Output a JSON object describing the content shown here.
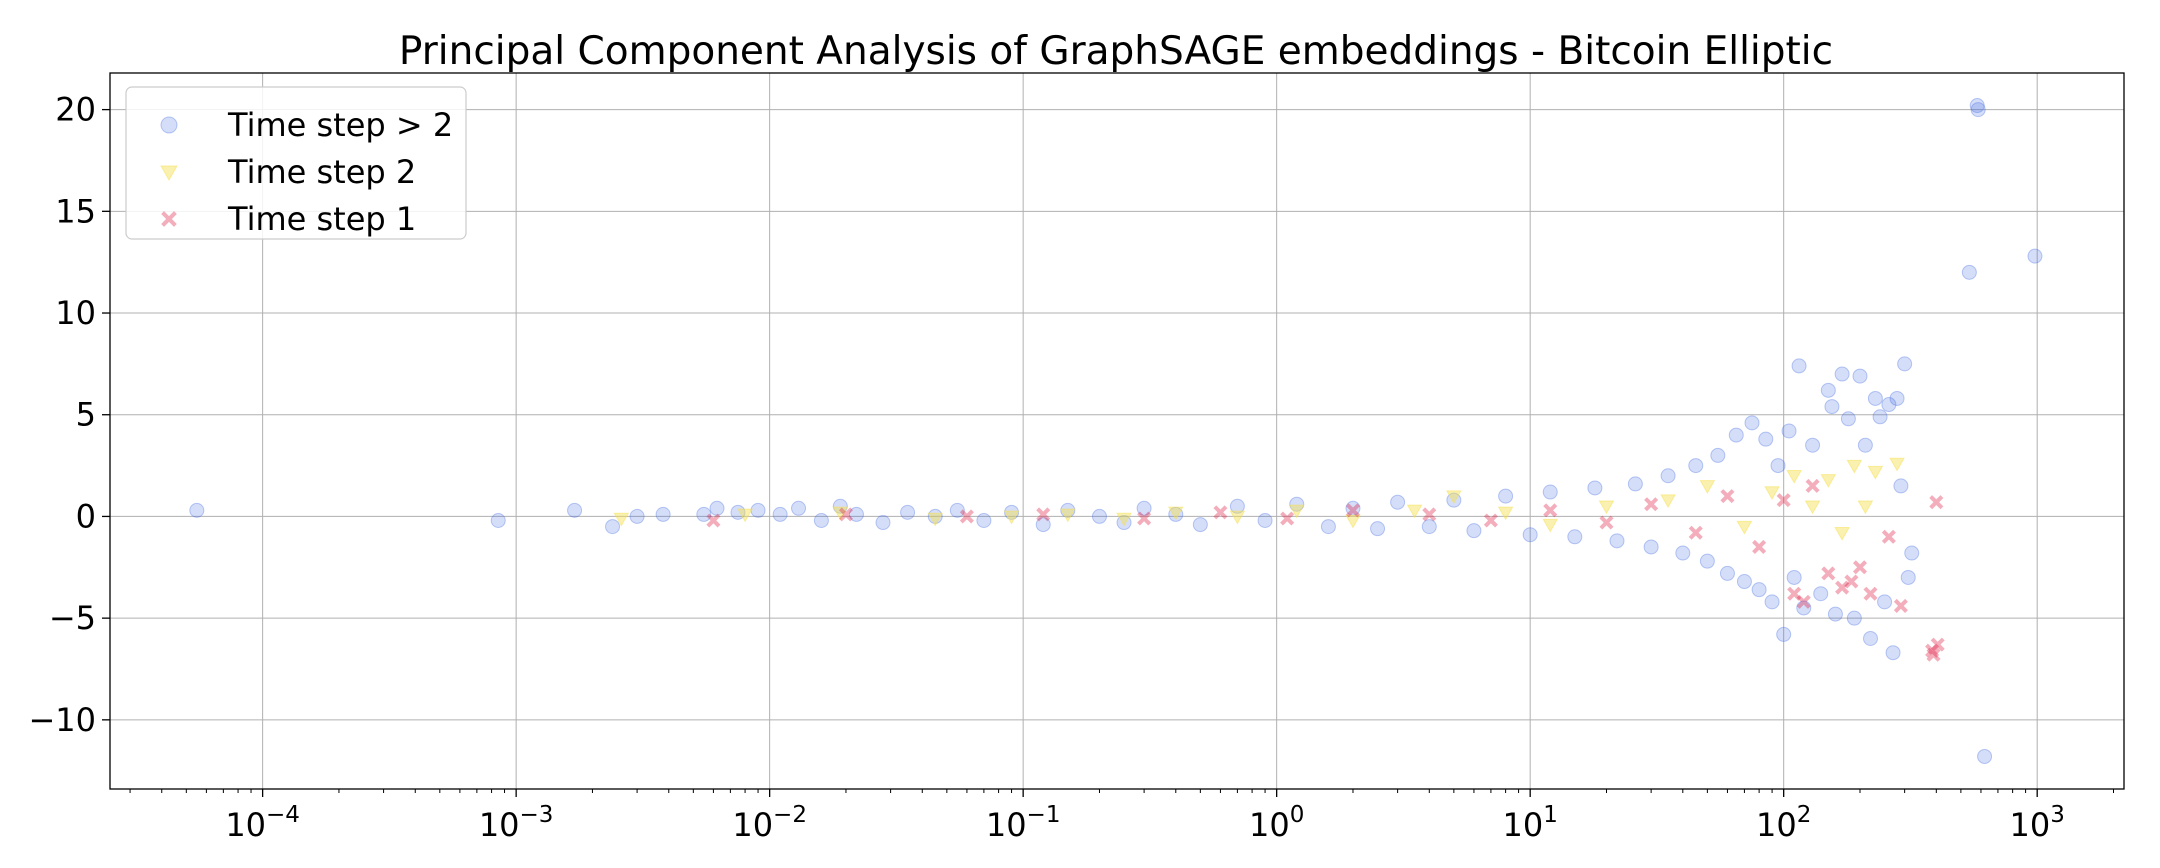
{
  "chart_data": {
    "type": "scatter",
    "title": "Principal Component Analysis of GraphSAGE embeddings - Bitcoin Elliptic",
    "xlabel": "",
    "ylabel": "",
    "x_scale": "log",
    "xlim": [
      2.5e-05,
      2200
    ],
    "ylim": [
      -13.4,
      21.8
    ],
    "grid": true,
    "legend_position": "top-left",
    "x_ticks": [
      {
        "value": 0.0001,
        "base": "10",
        "exp": "−4"
      },
      {
        "value": 0.001,
        "base": "10",
        "exp": "−3"
      },
      {
        "value": 0.01,
        "base": "10",
        "exp": "−2"
      },
      {
        "value": 0.1,
        "base": "10",
        "exp": "−1"
      },
      {
        "value": 1,
        "base": "10",
        "exp": "0"
      },
      {
        "value": 10,
        "base": "10",
        "exp": "1"
      },
      {
        "value": 100,
        "base": "10",
        "exp": "2"
      },
      {
        "value": 1000,
        "base": "10",
        "exp": "3"
      }
    ],
    "y_ticks": [
      {
        "value": 20,
        "label": "20"
      },
      {
        "value": 15,
        "label": "15"
      },
      {
        "value": 10,
        "label": "10"
      },
      {
        "value": 5,
        "label": "5"
      },
      {
        "value": 0,
        "label": "0"
      },
      {
        "value": -5,
        "label": "−5"
      },
      {
        "value": -10,
        "label": "−10"
      }
    ],
    "series": [
      {
        "name": "Time step > 2",
        "marker": "circle",
        "color": "#4169e1",
        "points": [
          [
            5.5e-05,
            0.3
          ],
          [
            0.00085,
            -0.2
          ],
          [
            0.0017,
            0.3
          ],
          [
            0.0024,
            -0.5
          ],
          [
            0.003,
            0.0
          ],
          [
            0.0038,
            0.1
          ],
          [
            0.0055,
            0.1
          ],
          [
            0.0062,
            0.4
          ],
          [
            0.0075,
            0.2
          ],
          [
            0.009,
            0.3
          ],
          [
            0.011,
            0.1
          ],
          [
            0.013,
            0.4
          ],
          [
            0.016,
            -0.2
          ],
          [
            0.019,
            0.5
          ],
          [
            0.022,
            0.1
          ],
          [
            0.028,
            -0.3
          ],
          [
            0.035,
            0.2
          ],
          [
            0.045,
            0.0
          ],
          [
            0.055,
            0.3
          ],
          [
            0.07,
            -0.2
          ],
          [
            0.09,
            0.2
          ],
          [
            0.12,
            -0.4
          ],
          [
            0.15,
            0.3
          ],
          [
            0.2,
            0.0
          ],
          [
            0.25,
            -0.3
          ],
          [
            0.3,
            0.4
          ],
          [
            0.4,
            0.1
          ],
          [
            0.5,
            -0.4
          ],
          [
            0.7,
            0.5
          ],
          [
            0.9,
            -0.2
          ],
          [
            1.2,
            0.6
          ],
          [
            1.6,
            -0.5
          ],
          [
            2,
            0.4
          ],
          [
            2.5,
            -0.6
          ],
          [
            3,
            0.7
          ],
          [
            4,
            -0.5
          ],
          [
            5,
            0.8
          ],
          [
            6,
            -0.7
          ],
          [
            8,
            1.0
          ],
          [
            10,
            -0.9
          ],
          [
            12,
            1.2
          ],
          [
            15,
            -1.0
          ],
          [
            18,
            1.4
          ],
          [
            22,
            -1.2
          ],
          [
            26,
            1.6
          ],
          [
            30,
            -1.5
          ],
          [
            35,
            2.0
          ],
          [
            40,
            -1.8
          ],
          [
            45,
            2.5
          ],
          [
            50,
            -2.2
          ],
          [
            55,
            3.0
          ],
          [
            60,
            -2.8
          ],
          [
            65,
            4.0
          ],
          [
            70,
            -3.2
          ],
          [
            75,
            4.6
          ],
          [
            80,
            -3.6
          ],
          [
            85,
            3.8
          ],
          [
            90,
            -4.2
          ],
          [
            95,
            2.5
          ],
          [
            100,
            -5.8
          ],
          [
            105,
            4.2
          ],
          [
            110,
            -3.0
          ],
          [
            115,
            7.4
          ],
          [
            120,
            -4.5
          ],
          [
            130,
            3.5
          ],
          [
            140,
            -3.8
          ],
          [
            150,
            6.2
          ],
          [
            155,
            5.4
          ],
          [
            160,
            -4.8
          ],
          [
            170,
            7.0
          ],
          [
            180,
            4.8
          ],
          [
            190,
            -5.0
          ],
          [
            200,
            6.9
          ],
          [
            210,
            3.5
          ],
          [
            220,
            -6.0
          ],
          [
            230,
            5.8
          ],
          [
            240,
            4.9
          ],
          [
            250,
            -4.2
          ],
          [
            260,
            5.5
          ],
          [
            270,
            -6.7
          ],
          [
            280,
            5.8
          ],
          [
            290,
            1.5
          ],
          [
            300,
            7.5
          ],
          [
            310,
            -3.0
          ],
          [
            320,
            -1.8
          ],
          [
            540,
            12.0
          ],
          [
            580,
            20.2
          ],
          [
            585,
            20.0
          ],
          [
            620,
            -11.8
          ],
          [
            980,
            12.8
          ]
        ]
      },
      {
        "name": "Time step 2",
        "marker": "triangle-down",
        "color": "#f5e050",
        "points": [
          [
            0.0026,
            -0.1
          ],
          [
            0.008,
            0.1
          ],
          [
            0.019,
            0.2
          ],
          [
            0.045,
            -0.1
          ],
          [
            0.09,
            0.0
          ],
          [
            0.15,
            0.1
          ],
          [
            0.25,
            -0.1
          ],
          [
            0.4,
            0.2
          ],
          [
            0.7,
            0.0
          ],
          [
            1.2,
            0.3
          ],
          [
            2,
            -0.2
          ],
          [
            3.5,
            0.3
          ],
          [
            5,
            1.0
          ],
          [
            8,
            0.2
          ],
          [
            12,
            -0.4
          ],
          [
            20,
            0.5
          ],
          [
            35,
            0.8
          ],
          [
            50,
            1.5
          ],
          [
            70,
            -0.5
          ],
          [
            90,
            1.2
          ],
          [
            110,
            2.0
          ],
          [
            130,
            0.5
          ],
          [
            150,
            1.8
          ],
          [
            170,
            -0.8
          ],
          [
            190,
            2.5
          ],
          [
            210,
            0.5
          ],
          [
            230,
            2.2
          ],
          [
            280,
            2.6
          ]
        ]
      },
      {
        "name": "Time step 1",
        "marker": "x",
        "color": "#dc143c",
        "points": [
          [
            0.006,
            -0.2
          ],
          [
            0.02,
            0.1
          ],
          [
            0.06,
            0.0
          ],
          [
            0.12,
            0.1
          ],
          [
            0.3,
            -0.1
          ],
          [
            0.6,
            0.2
          ],
          [
            1.1,
            -0.1
          ],
          [
            2,
            0.3
          ],
          [
            4,
            0.1
          ],
          [
            7,
            -0.2
          ],
          [
            12,
            0.3
          ],
          [
            20,
            -0.3
          ],
          [
            30,
            0.6
          ],
          [
            45,
            -0.8
          ],
          [
            60,
            1.0
          ],
          [
            80,
            -1.5
          ],
          [
            100,
            0.8
          ],
          [
            110,
            -3.8
          ],
          [
            120,
            -4.2
          ],
          [
            130,
            1.5
          ],
          [
            150,
            -2.8
          ],
          [
            170,
            -3.5
          ],
          [
            185,
            -3.2
          ],
          [
            200,
            -2.5
          ],
          [
            220,
            -3.8
          ],
          [
            260,
            -1.0
          ],
          [
            290,
            -4.4
          ],
          [
            385,
            -6.6
          ],
          [
            390,
            -6.8
          ],
          [
            400,
            0.7
          ],
          [
            405,
            -6.3
          ]
        ]
      }
    ]
  }
}
